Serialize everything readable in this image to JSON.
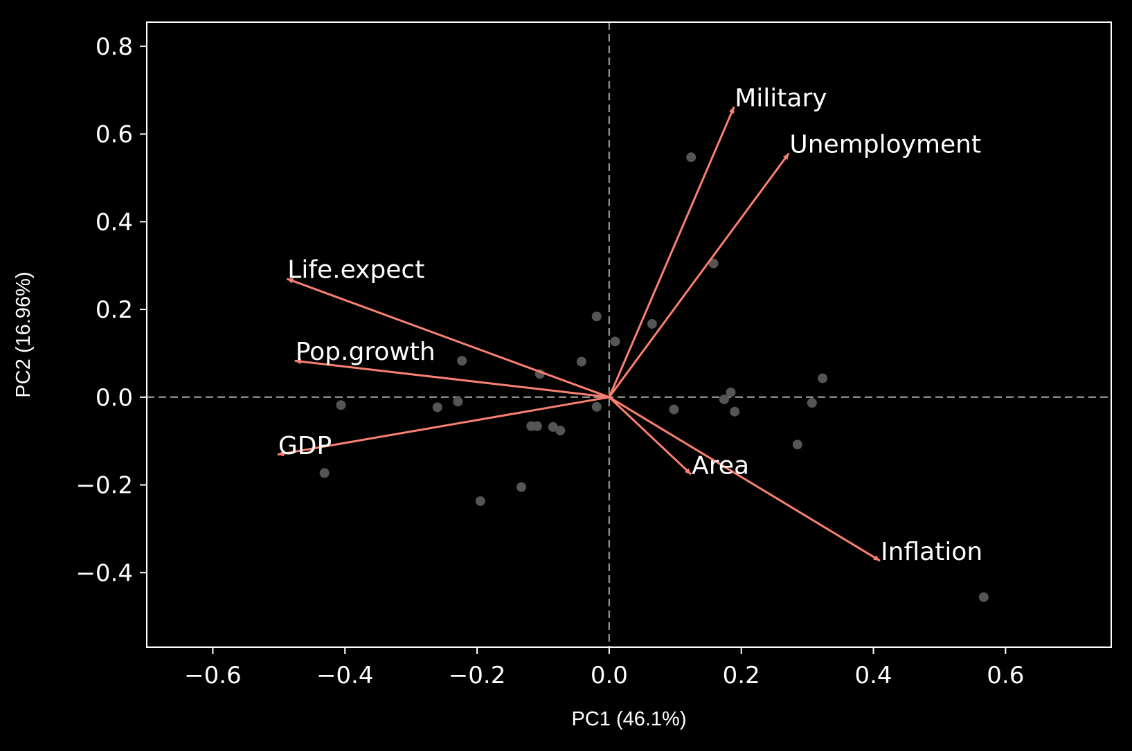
{
  "chart_data": {
    "type": "scatter",
    "title": "",
    "xlabel": "PC1 (46.1%)",
    "ylabel": "PC2 (16.96%)",
    "xlim": [
      -0.7,
      0.76
    ],
    "ylim": [
      -0.57,
      0.855
    ],
    "xticks": [
      -0.6,
      -0.4,
      -0.2,
      0.0,
      0.2,
      0.4,
      0.6
    ],
    "xtick_labels": [
      "−0.6",
      "−0.4",
      "−0.2",
      "0.0",
      "0.2",
      "0.4",
      "0.6"
    ],
    "yticks": [
      -0.4,
      -0.2,
      0.0,
      0.2,
      0.4,
      0.6,
      0.8
    ],
    "ytick_labels": [
      "−0.4",
      "−0.2",
      "0.0",
      "0.2",
      "0.4",
      "0.6",
      "0.8"
    ],
    "grid": false,
    "reference_lines": {
      "x": 0,
      "y": 0,
      "style": "dashed",
      "color": "#888888"
    },
    "colors": {
      "background": "#000000",
      "axes": "#ffffff",
      "points": "#555555",
      "loadings": "#fa8072",
      "text": "#ffffff"
    },
    "points": [
      {
        "x": 0.124,
        "y": 0.547
      },
      {
        "x": 0.158,
        "y": 0.305
      },
      {
        "x": -0.019,
        "y": 0.184
      },
      {
        "x": 0.065,
        "y": 0.167
      },
      {
        "x": 0.009,
        "y": 0.127
      },
      {
        "x": -0.223,
        "y": 0.083
      },
      {
        "x": -0.042,
        "y": 0.081
      },
      {
        "x": -0.105,
        "y": 0.053
      },
      {
        "x": 0.323,
        "y": 0.043
      },
      {
        "x": 0.184,
        "y": 0.011
      },
      {
        "x": 0.174,
        "y": -0.005
      },
      {
        "x": 0.307,
        "y": -0.013
      },
      {
        "x": -0.229,
        "y": -0.01
      },
      {
        "x": -0.406,
        "y": -0.018
      },
      {
        "x": -0.26,
        "y": -0.023
      },
      {
        "x": -0.019,
        "y": -0.022
      },
      {
        "x": 0.098,
        "y": -0.028
      },
      {
        "x": 0.19,
        "y": -0.033
      },
      {
        "x": -0.118,
        "y": -0.066
      },
      {
        "x": -0.109,
        "y": -0.066
      },
      {
        "x": -0.085,
        "y": -0.068
      },
      {
        "x": -0.074,
        "y": -0.076
      },
      {
        "x": 0.285,
        "y": -0.108
      },
      {
        "x": -0.431,
        "y": -0.173
      },
      {
        "x": -0.133,
        "y": -0.205
      },
      {
        "x": -0.195,
        "y": -0.237
      },
      {
        "x": 0.567,
        "y": -0.456
      }
    ],
    "loadings": [
      {
        "name": "Military",
        "x": 0.189,
        "y": 0.662
      },
      {
        "name": "Unemployment",
        "x": 0.272,
        "y": 0.556
      },
      {
        "name": "Life.expect",
        "x": -0.488,
        "y": 0.27
      },
      {
        "name": "Pop.growth",
        "x": -0.476,
        "y": 0.083
      },
      {
        "name": "GDP",
        "x": -0.502,
        "y": -0.131
      },
      {
        "name": "Area",
        "x": 0.124,
        "y": -0.176
      },
      {
        "name": "Inflation",
        "x": 0.41,
        "y": -0.373
      }
    ]
  }
}
